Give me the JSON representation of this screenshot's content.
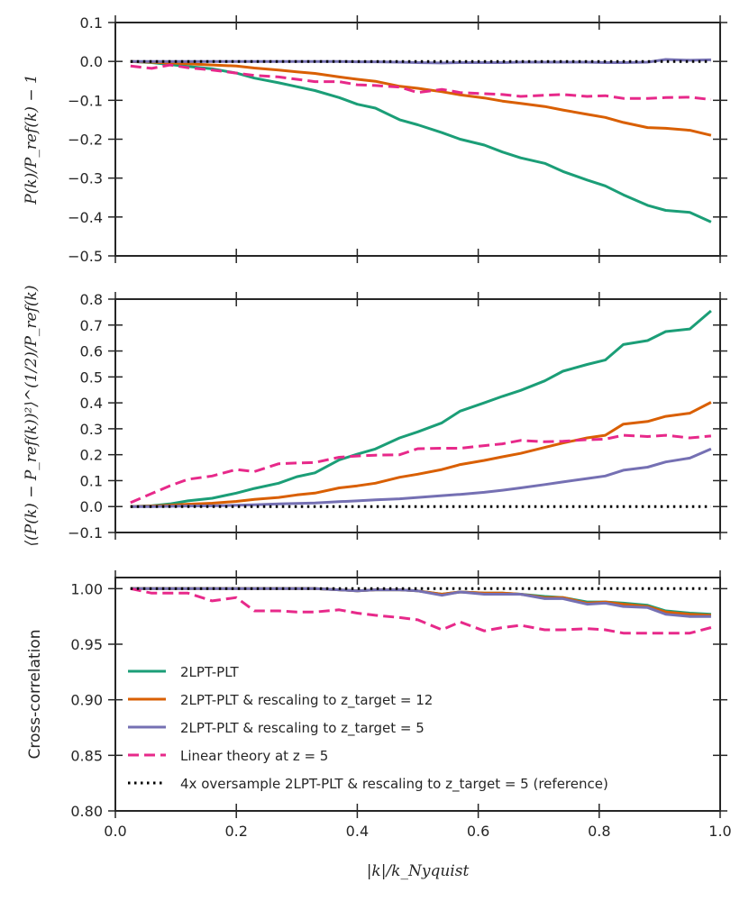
{
  "chart_data": [
    {
      "type": "line",
      "panel": "top",
      "ylabel": "P(k)/P_ref(k) − 1",
      "xlabel": "",
      "xlim": [
        0.0,
        1.0
      ],
      "ylim": [
        -0.5,
        0.1
      ],
      "yticks": [
        "0.1",
        "0.0",
        "−0.1",
        "−0.2",
        "−0.3",
        "−0.4",
        "−0.5"
      ],
      "ytick_values": [
        0.1,
        0.0,
        -0.1,
        -0.2,
        -0.3,
        -0.4,
        -0.5
      ],
      "x": [
        0.025,
        0.06,
        0.09,
        0.12,
        0.16,
        0.2,
        0.23,
        0.27,
        0.3,
        0.33,
        0.37,
        0.4,
        0.43,
        0.47,
        0.5,
        0.54,
        0.57,
        0.61,
        0.64,
        0.67,
        0.71,
        0.74,
        0.78,
        0.81,
        0.84,
        0.88,
        0.91,
        0.95,
        0.985
      ],
      "series": [
        {
          "name": "2LPT-PLT",
          "color": "#1b9e77",
          "style": "solid",
          "values": [
            0.0,
            -0.003,
            -0.008,
            -0.013,
            -0.019,
            -0.03,
            -0.043,
            -0.055,
            -0.065,
            -0.075,
            -0.093,
            -0.11,
            -0.12,
            -0.15,
            -0.163,
            -0.183,
            -0.2,
            -0.215,
            -0.233,
            -0.248,
            -0.262,
            -0.283,
            -0.305,
            -0.32,
            -0.343,
            -0.37,
            -0.383,
            -0.388,
            -0.413
          ]
        },
        {
          "name": "2LPT-PLT & rescaling to z_target = 12",
          "color": "#d95f02",
          "style": "solid",
          "values": [
            0.0,
            -0.002,
            -0.004,
            -0.006,
            -0.009,
            -0.012,
            -0.017,
            -0.022,
            -0.027,
            -0.031,
            -0.04,
            -0.046,
            -0.051,
            -0.064,
            -0.069,
            -0.078,
            -0.086,
            -0.094,
            -0.102,
            -0.108,
            -0.116,
            -0.125,
            -0.136,
            -0.144,
            -0.157,
            -0.17,
            -0.172,
            -0.177,
            -0.19
          ]
        },
        {
          "name": "2LPT-PLT & rescaling to z_target = 5",
          "color": "#7570b3",
          "style": "solid",
          "values": [
            0.0,
            0.0,
            0.0,
            0.0,
            0.0,
            0.0,
            0.0,
            0.0,
            0.0,
            0.0,
            0.0,
            -0.001,
            -0.001,
            -0.002,
            -0.003,
            -0.004,
            -0.003,
            -0.003,
            -0.003,
            -0.002,
            -0.002,
            -0.002,
            -0.002,
            -0.003,
            -0.003,
            -0.002,
            0.005,
            0.003,
            0.004
          ]
        },
        {
          "name": "Linear theory at z = 5",
          "color": "#e7298a",
          "style": "dashed",
          "values": [
            -0.012,
            -0.018,
            -0.009,
            -0.016,
            -0.022,
            -0.03,
            -0.036,
            -0.04,
            -0.046,
            -0.052,
            -0.052,
            -0.06,
            -0.062,
            -0.066,
            -0.08,
            -0.072,
            -0.08,
            -0.083,
            -0.085,
            -0.09,
            -0.087,
            -0.085,
            -0.09,
            -0.088,
            -0.095,
            -0.095,
            -0.093,
            -0.092,
            -0.098
          ]
        },
        {
          "name": "4x oversample 2LPT-PLT & rescaling to z_target = 5 (reference)",
          "color": "#000000",
          "style": "dotted",
          "values": [
            0.0,
            0.0,
            0.0,
            0.0,
            0.0,
            0.0,
            0.0,
            0.0,
            0.0,
            0.0,
            0.0,
            0.0,
            0.0,
            0.0,
            0.0,
            0.0,
            0.0,
            0.0,
            0.0,
            0.0,
            0.0,
            0.0,
            0.0,
            0.0,
            0.0,
            0.0,
            0.0,
            0.0,
            0.0
          ]
        }
      ]
    },
    {
      "type": "line",
      "panel": "middle",
      "ylabel": "⟨(P(k) − P_ref(k))²⟩^(1/2) / P_ref(k)",
      "xlabel": "",
      "xlim": [
        0.0,
        1.0
      ],
      "ylim": [
        -0.1,
        0.8
      ],
      "yticks": [
        "0.8",
        "0.7",
        "0.6",
        "0.5",
        "0.4",
        "0.3",
        "0.2",
        "0.1",
        "0.0",
        "−0.1"
      ],
      "ytick_values": [
        0.8,
        0.7,
        0.6,
        0.5,
        0.4,
        0.3,
        0.2,
        0.1,
        0.0,
        -0.1
      ],
      "x": [
        0.025,
        0.06,
        0.09,
        0.12,
        0.16,
        0.2,
        0.23,
        0.27,
        0.3,
        0.33,
        0.37,
        0.4,
        0.43,
        0.47,
        0.5,
        0.54,
        0.57,
        0.61,
        0.64,
        0.67,
        0.71,
        0.74,
        0.78,
        0.81,
        0.84,
        0.88,
        0.91,
        0.95,
        0.985
      ],
      "series": [
        {
          "name": "2LPT-PLT",
          "color": "#1b9e77",
          "style": "solid",
          "values": [
            0.0,
            0.003,
            0.01,
            0.022,
            0.032,
            0.052,
            0.07,
            0.09,
            0.115,
            0.13,
            0.18,
            0.202,
            0.222,
            0.265,
            0.288,
            0.323,
            0.368,
            0.4,
            0.425,
            0.448,
            0.485,
            0.522,
            0.548,
            0.565,
            0.625,
            0.64,
            0.675,
            0.685,
            0.755
          ]
        },
        {
          "name": "2LPT-PLT & rescaling to z_target = 12",
          "color": "#d95f02",
          "style": "solid",
          "values": [
            0.0,
            0.002,
            0.005,
            0.009,
            0.013,
            0.02,
            0.028,
            0.035,
            0.045,
            0.052,
            0.072,
            0.08,
            0.09,
            0.113,
            0.125,
            0.143,
            0.162,
            0.178,
            0.192,
            0.205,
            0.228,
            0.245,
            0.265,
            0.275,
            0.318,
            0.328,
            0.348,
            0.36,
            0.402
          ]
        },
        {
          "name": "2LPT-PLT & rescaling to z_target = 5",
          "color": "#7570b3",
          "style": "solid",
          "values": [
            0.0,
            0.0,
            0.001,
            0.002,
            0.003,
            0.005,
            0.007,
            0.01,
            0.012,
            0.014,
            0.019,
            0.022,
            0.026,
            0.03,
            0.035,
            0.042,
            0.047,
            0.055,
            0.063,
            0.072,
            0.085,
            0.095,
            0.108,
            0.118,
            0.14,
            0.152,
            0.172,
            0.187,
            0.222
          ]
        },
        {
          "name": "Linear theory at z = 5",
          "color": "#e7298a",
          "style": "dashed",
          "values": [
            0.015,
            0.05,
            0.08,
            0.105,
            0.118,
            0.143,
            0.135,
            0.165,
            0.168,
            0.17,
            0.19,
            0.195,
            0.198,
            0.2,
            0.223,
            0.225,
            0.225,
            0.235,
            0.242,
            0.255,
            0.25,
            0.252,
            0.258,
            0.26,
            0.275,
            0.27,
            0.275,
            0.265,
            0.272
          ]
        },
        {
          "name": "4x oversample 2LPT-PLT & rescaling to z_target = 5 (reference)",
          "color": "#000000",
          "style": "dotted",
          "values": [
            0.0,
            0.0,
            0.0,
            0.0,
            0.0,
            0.0,
            0.0,
            0.0,
            0.0,
            0.0,
            0.0,
            0.0,
            0.0,
            0.0,
            0.0,
            0.0,
            0.0,
            0.0,
            0.0,
            0.0,
            0.0,
            0.0,
            0.0,
            0.0,
            0.0,
            0.0,
            0.0,
            0.0,
            0.0
          ]
        }
      ]
    },
    {
      "type": "line",
      "panel": "bottom",
      "ylabel": "Cross-correlation",
      "xlabel": "|k| / k_Nyquist",
      "xlim": [
        0.0,
        1.0
      ],
      "ylim": [
        0.8,
        1.01
      ],
      "yticks": [
        "1.00",
        "0.95",
        "0.90",
        "0.85",
        "0.80"
      ],
      "ytick_values": [
        1.0,
        0.95,
        0.9,
        0.85,
        0.8
      ],
      "xticks": [
        "0.0",
        "0.2",
        "0.4",
        "0.6",
        "0.8",
        "1.0"
      ],
      "xtick_values": [
        0.0,
        0.2,
        0.4,
        0.6,
        0.8,
        1.0
      ],
      "legend": "lower-left",
      "x": [
        0.025,
        0.06,
        0.09,
        0.12,
        0.16,
        0.2,
        0.23,
        0.27,
        0.3,
        0.33,
        0.37,
        0.4,
        0.43,
        0.47,
        0.5,
        0.54,
        0.57,
        0.61,
        0.64,
        0.67,
        0.71,
        0.74,
        0.78,
        0.81,
        0.84,
        0.88,
        0.91,
        0.95,
        0.985
      ],
      "series": [
        {
          "name": "2LPT-PLT",
          "color": "#1b9e77",
          "style": "solid",
          "values": [
            1.0,
            1.0,
            1.0,
            1.0,
            1.0,
            1.0,
            1.0,
            1.0,
            1.0,
            1.0,
            0.999,
            0.998,
            0.999,
            0.999,
            0.998,
            0.995,
            0.997,
            0.996,
            0.996,
            0.995,
            0.993,
            0.992,
            0.988,
            0.988,
            0.987,
            0.985,
            0.98,
            0.978,
            0.977
          ]
        },
        {
          "name": "2LPT-PLT & rescaling to z_target = 12",
          "color": "#d95f02",
          "style": "solid",
          "values": [
            1.0,
            1.0,
            1.0,
            1.0,
            1.0,
            1.0,
            1.0,
            1.0,
            1.0,
            1.0,
            0.999,
            0.998,
            0.999,
            0.999,
            0.998,
            0.995,
            0.997,
            0.996,
            0.996,
            0.995,
            0.992,
            0.992,
            0.987,
            0.988,
            0.986,
            0.984,
            0.979,
            0.977,
            0.976
          ]
        },
        {
          "name": "2LPT-PLT & rescaling to z_target = 5",
          "color": "#7570b3",
          "style": "solid",
          "values": [
            1.0,
            1.0,
            1.0,
            1.0,
            1.0,
            1.0,
            1.0,
            1.0,
            1.0,
            1.0,
            0.999,
            0.998,
            0.999,
            0.999,
            0.998,
            0.994,
            0.997,
            0.995,
            0.995,
            0.995,
            0.991,
            0.991,
            0.986,
            0.987,
            0.984,
            0.983,
            0.977,
            0.975,
            0.975
          ]
        },
        {
          "name": "Linear theory at z = 5",
          "color": "#e7298a",
          "style": "dashed",
          "values": [
            1.0,
            0.996,
            0.996,
            0.996,
            0.989,
            0.992,
            0.98,
            0.98,
            0.979,
            0.979,
            0.981,
            0.978,
            0.976,
            0.974,
            0.972,
            0.963,
            0.97,
            0.962,
            0.965,
            0.967,
            0.963,
            0.963,
            0.964,
            0.963,
            0.96,
            0.96,
            0.96,
            0.96,
            0.965
          ]
        },
        {
          "name": "4x oversample 2LPT-PLT & rescaling to z_target = 5 (reference)",
          "color": "#000000",
          "style": "dotted",
          "values": [
            1.0,
            1.0,
            1.0,
            1.0,
            1.0,
            1.0,
            1.0,
            1.0,
            1.0,
            1.0,
            1.0,
            1.0,
            1.0,
            1.0,
            1.0,
            1.0,
            1.0,
            1.0,
            1.0,
            1.0,
            1.0,
            1.0,
            1.0,
            1.0,
            1.0,
            1.0,
            1.0,
            1.0,
            1.0
          ]
        }
      ]
    }
  ],
  "labels": {
    "top_ylabel": "P(k)/P_ref(k) − 1",
    "middle_ylabel": "⟨(P(k) − P_ref(k))²⟩^(1/2)/P_ref(k)",
    "bottom_ylabel": "Cross-correlation",
    "xlabel": "|k|/k_Nyquist"
  },
  "legend": [
    {
      "label": "2LPT-PLT",
      "color": "#1b9e77",
      "style": "solid"
    },
    {
      "label": "2LPT-PLT & rescaling to z_target = 12",
      "color": "#d95f02",
      "style": "solid"
    },
    {
      "label": "2LPT-PLT & rescaling to z_target = 5",
      "color": "#7570b3",
      "style": "solid"
    },
    {
      "label": "Linear theory at z = 5",
      "color": "#e7298a",
      "style": "dashed"
    },
    {
      "label": "4x oversample 2LPT-PLT & rescaling to z_target = 5 (reference)",
      "color": "#000000",
      "style": "dotted"
    }
  ]
}
